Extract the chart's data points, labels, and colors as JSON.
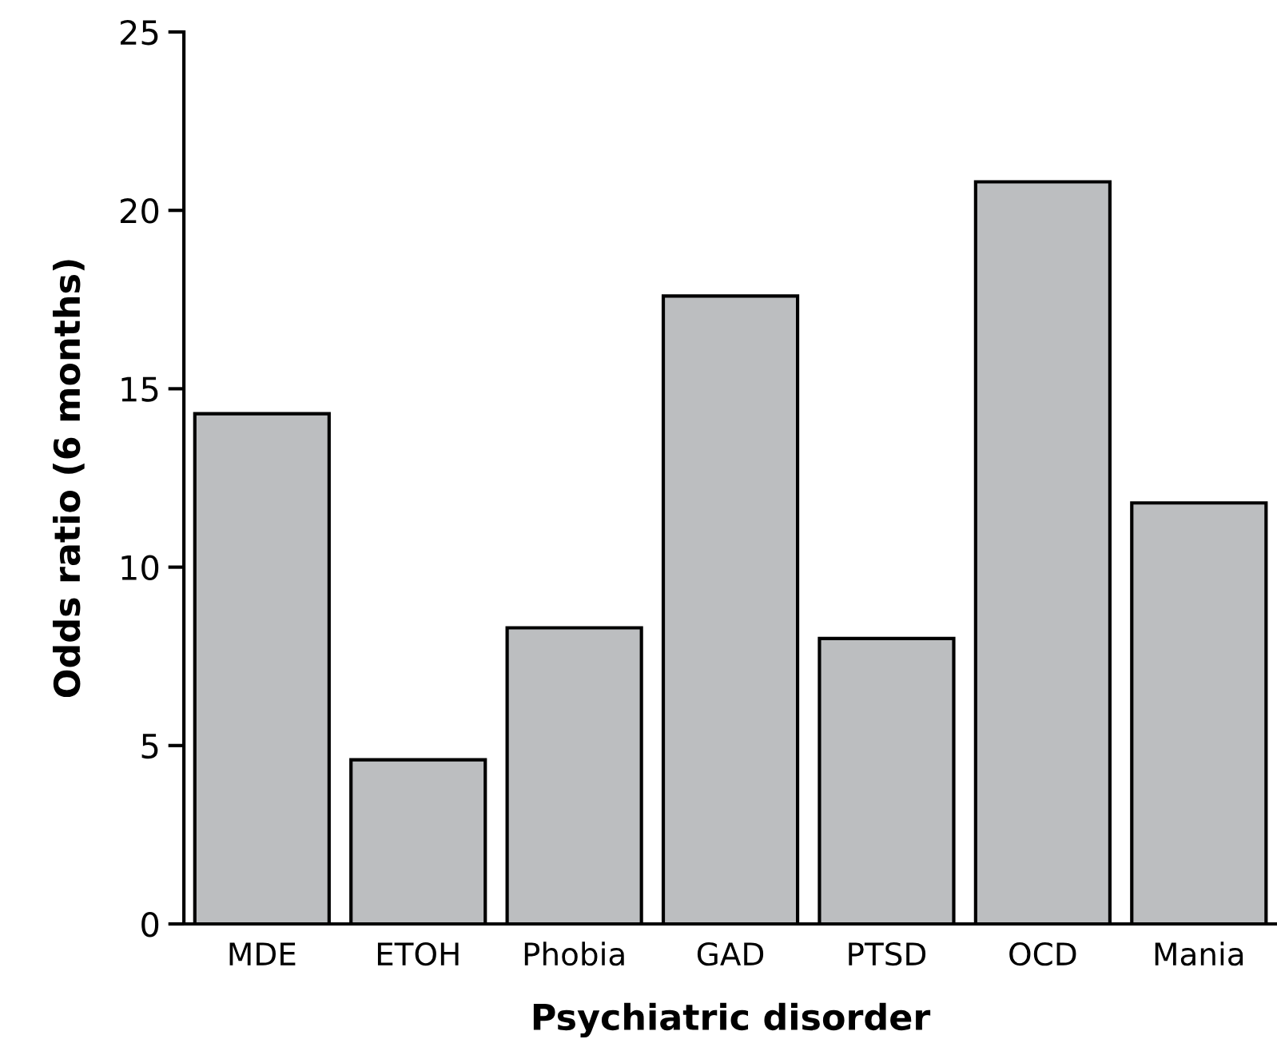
{
  "chart_data": {
    "type": "bar",
    "xlabel": "Psychiatric disorder",
    "ylabel": "Odds ratio (6 months)",
    "categories": [
      "MDE",
      "ETOH",
      "Phobia",
      "GAD",
      "PTSD",
      "OCD",
      "Mania"
    ],
    "values": [
      14.3,
      4.6,
      8.3,
      17.6,
      8.0,
      20.8,
      11.8
    ],
    "color": "#bcbec0",
    "ylim": [
      0,
      25
    ],
    "yticks": [
      0,
      5,
      10,
      15,
      20,
      25
    ],
    "grid": false
  }
}
